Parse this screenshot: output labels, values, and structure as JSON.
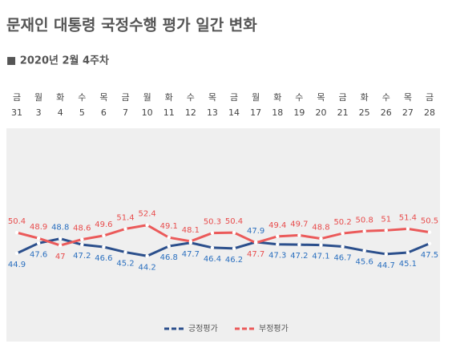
{
  "chart_data": {
    "type": "line",
    "title": "문재인 대통령 국정수행 평가 일간 변화",
    "subtitle": "■ 2020년 2월 4주차",
    "weekdays": [
      "금",
      "월",
      "화",
      "수",
      "목",
      "금",
      "월",
      "화",
      "수",
      "목",
      "금",
      "월",
      "화",
      "수",
      "목",
      "금",
      "화",
      "수",
      "목",
      "금"
    ],
    "categories": [
      "31",
      "3",
      "4",
      "5",
      "6",
      "7",
      "10",
      "11",
      "12",
      "13",
      "14",
      "17",
      "18",
      "19",
      "20",
      "21",
      "25",
      "26",
      "27",
      "28"
    ],
    "series": [
      {
        "name": "긍정평가",
        "color": "#2b4f8c",
        "label_color": "#2a6fbf",
        "values": [
          44.9,
          47.6,
          48.8,
          47.2,
          46.6,
          45.2,
          44.2,
          46.8,
          47.7,
          46.4,
          46.2,
          47.9,
          47.3,
          47.2,
          47.1,
          46.7,
          45.6,
          44.7,
          45.1,
          47.5
        ]
      },
      {
        "name": "부정평가",
        "color": "#eb5a5a",
        "label_color": "#e84c4c",
        "values": [
          50.4,
          48.9,
          47.0,
          48.6,
          49.6,
          51.4,
          52.4,
          49.1,
          48.1,
          50.3,
          50.4,
          47.7,
          49.4,
          49.7,
          48.8,
          50.2,
          50.8,
          51.0,
          51.4,
          50.5
        ]
      }
    ]
  }
}
